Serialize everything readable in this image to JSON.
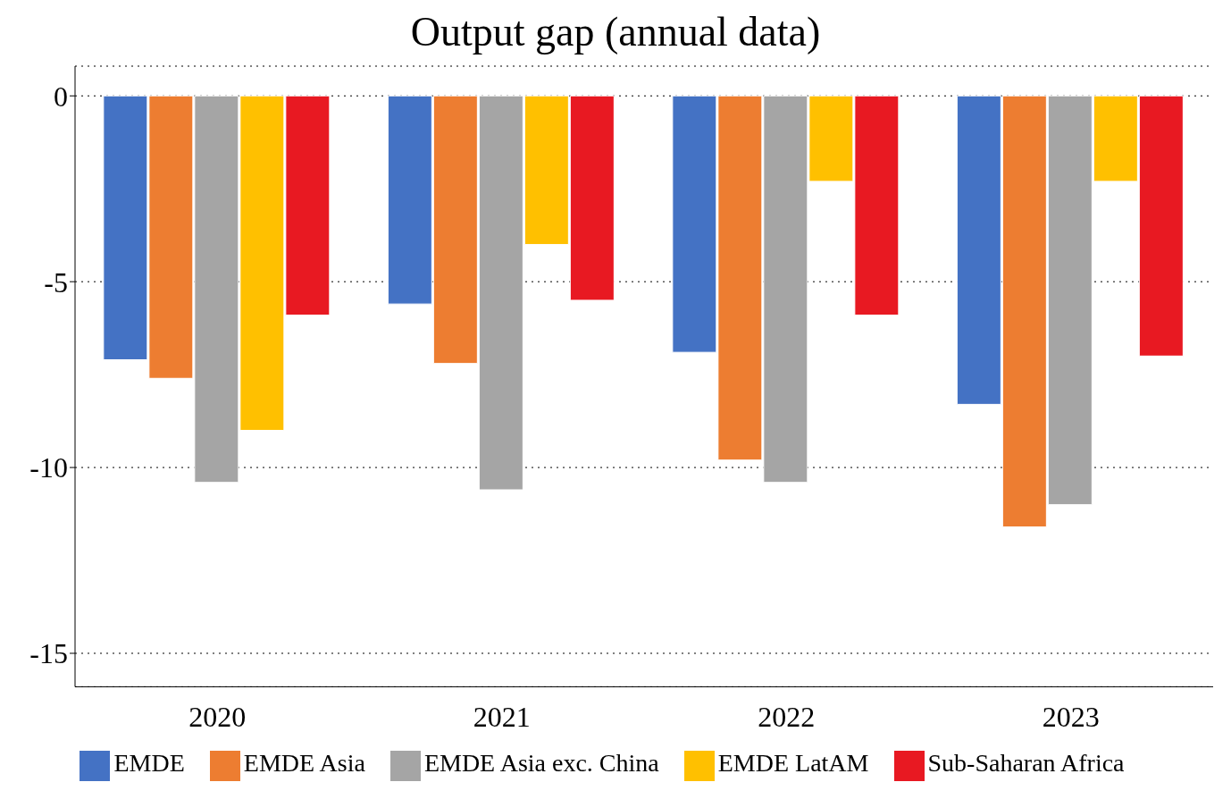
{
  "chart_data": {
    "type": "bar",
    "title": "Output gap (annual data)",
    "categories": [
      "2020",
      "2021",
      "2022",
      "2023"
    ],
    "series": [
      {
        "name": "EMDE",
        "color": "#4472c4",
        "values": [
          -7.1,
          -5.6,
          -6.9,
          -8.3
        ]
      },
      {
        "name": "EMDE Asia",
        "color": "#ed7d31",
        "values": [
          -7.6,
          -7.2,
          -9.8,
          -11.6
        ]
      },
      {
        "name": "EMDE Asia exc. China",
        "color": "#a5a5a5",
        "values": [
          -10.4,
          -10.6,
          -10.4,
          -11.0
        ]
      },
      {
        "name": "EMDE LatAM",
        "color": "#ffc000",
        "values": [
          -9.0,
          -4.0,
          -2.3,
          -2.3
        ]
      },
      {
        "name": "Sub-Saharan Africa",
        "color": "#e81922",
        "values": [
          -5.9,
          -5.5,
          -5.9,
          -7.0
        ]
      }
    ],
    "ylim": [
      -15.9,
      0.8
    ],
    "yticks": [
      -15,
      -10,
      -5,
      0
    ],
    "grid": "y",
    "legend": "bottom"
  }
}
